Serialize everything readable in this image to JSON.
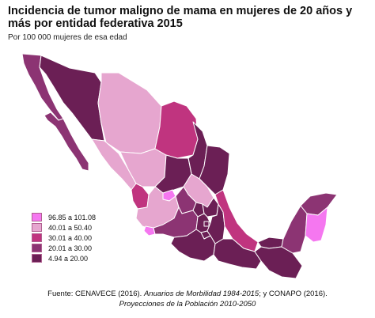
{
  "title": "Incidencia de tumor maligno de mama en mujeres de 20 años y más por entidad federativa 2015",
  "subtitle": "Por 100 000 mujeres de esa edad",
  "colors": {
    "c1": "#f577f0",
    "c2": "#e6a6cf",
    "c3": "#c0347f",
    "c4": "#8c3473",
    "c5": "#6b1f55",
    "border": "#ffffff"
  },
  "legend": [
    {
      "label": "96.85 a 101.08",
      "color": "#f577f0"
    },
    {
      "label": "40.01 a 50.40",
      "color": "#e6a6cf"
    },
    {
      "label": "30.01 a 40.00",
      "color": "#c0347f"
    },
    {
      "label": "20.01 a 30.00",
      "color": "#8c3473"
    },
    {
      "label": "4.94 a 20.00",
      "color": "#6b1f55"
    }
  ],
  "source": {
    "line1_a": "Fuente: CENAVECE (2016). ",
    "line1_b": "Anuarios de Morbilidad 1984-2015",
    "line1_c": "; y CONAPO (2016).",
    "line2": "Proyecciones de la Población 2010-2050"
  }
}
